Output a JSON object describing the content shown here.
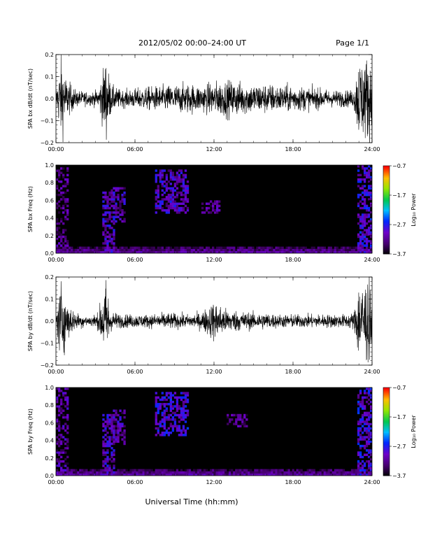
{
  "header": {
    "title": "2012/05/02  00:00–24:00 UT",
    "page": "Page 1/1"
  },
  "x_axis_title": "Universal Time (hh:mm)",
  "chart_data": [
    {
      "type": "line",
      "ylabel": "SPA bx dB/dt (nT/sec)",
      "ylim": [
        -0.2,
        0.2
      ],
      "yticks": [
        "0.2",
        "0.1",
        "0.0",
        "−0.1",
        "−0.2"
      ],
      "xlim": [
        0,
        24
      ],
      "xticks": [
        "00:00",
        "06:00",
        "12:00",
        "18:00",
        "24:00"
      ],
      "amplitude_profile": {
        "x_hours": [
          0,
          0.4,
          0.8,
          1.5,
          2.5,
          3.2,
          3.8,
          4.2,
          5.0,
          6.0,
          7.0,
          8.5,
          10.0,
          11.0,
          12.0,
          13.0,
          14.0,
          15.0,
          16.0,
          17.0,
          18.0,
          19.0,
          20.0,
          21.0,
          22.0,
          22.6,
          23.0,
          24.0
        ],
        "peak_amplitude": [
          0.05,
          0.25,
          0.12,
          0.05,
          0.04,
          0.05,
          0.25,
          0.08,
          0.05,
          0.06,
          0.07,
          0.08,
          0.09,
          0.08,
          0.1,
          0.11,
          0.1,
          0.09,
          0.09,
          0.08,
          0.08,
          0.07,
          0.06,
          0.05,
          0.05,
          0.05,
          0.25,
          0.25
        ]
      }
    },
    {
      "type": "heatmap",
      "ylabel": "SPA bx Freq (Hz)",
      "ylim": [
        0.0,
        1.0
      ],
      "yticks": [
        "1.0",
        "0.8",
        "0.6",
        "0.4",
        "0.2",
        "0.0"
      ],
      "xlim": [
        0,
        24
      ],
      "xticks": [
        "00:00",
        "06:00",
        "12:00",
        "18:00",
        "24:00"
      ],
      "colorbar": {
        "label": "Log₁₀ Power",
        "ticks": [
          "−0.7",
          "−1.7",
          "−2.7",
          "−3.7"
        ],
        "range": [
          -3.7,
          -0.7
        ]
      },
      "features": [
        {
          "x": [
            0.0,
            1.0
          ],
          "f": [
            0.0,
            1.0
          ],
          "level": -2.9
        },
        {
          "x": [
            3.5,
            4.5
          ],
          "f": [
            0.0,
            0.7
          ],
          "level": -2.6
        },
        {
          "x": [
            4.2,
            5.2
          ],
          "f": [
            0.35,
            0.75
          ],
          "level": -2.7
        },
        {
          "x": [
            7.5,
            10.0
          ],
          "f": [
            0.45,
            0.95
          ],
          "level": -2.6
        },
        {
          "x": [
            11.0,
            12.5
          ],
          "f": [
            0.45,
            0.6
          ],
          "level": -2.8
        },
        {
          "x": [
            22.9,
            24.0
          ],
          "f": [
            0.0,
            1.0
          ],
          "level": -2.5
        }
      ]
    },
    {
      "type": "line",
      "ylabel": "SPA by dB/dt (nT/sec)",
      "ylim": [
        -0.2,
        0.2
      ],
      "yticks": [
        "0.2",
        "0.1",
        "0.0",
        "−0.1",
        "−0.2"
      ],
      "xlim": [
        0,
        24
      ],
      "xticks": [
        "00:00",
        "06:00",
        "12:00",
        "18:00",
        "24:00"
      ],
      "amplitude_profile": {
        "x_hours": [
          0,
          0.4,
          0.8,
          1.5,
          2.5,
          3.2,
          3.8,
          4.2,
          5.0,
          6.0,
          7.0,
          8.5,
          10.0,
          11.0,
          12.0,
          13.0,
          14.0,
          15.0,
          16.0,
          17.0,
          18.0,
          19.0,
          20.0,
          21.0,
          22.0,
          22.6,
          23.0,
          24.0
        ],
        "peak_amplitude": [
          0.05,
          0.25,
          0.12,
          0.05,
          0.03,
          0.05,
          0.25,
          0.06,
          0.04,
          0.04,
          0.04,
          0.05,
          0.04,
          0.05,
          0.12,
          0.07,
          0.06,
          0.05,
          0.05,
          0.04,
          0.04,
          0.04,
          0.04,
          0.04,
          0.04,
          0.05,
          0.25,
          0.25
        ]
      }
    },
    {
      "type": "heatmap",
      "ylabel": "SPA by Freq (Hz)",
      "ylim": [
        0.0,
        1.0
      ],
      "yticks": [
        "1.0",
        "0.8",
        "0.6",
        "0.4",
        "0.2",
        "0.0"
      ],
      "xlim": [
        0,
        24
      ],
      "xticks": [
        "00:00",
        "06:00",
        "12:00",
        "18:00",
        "24:00"
      ],
      "colorbar": {
        "label": "Log₁₀ Power",
        "ticks": [
          "−0.7",
          "−1.7",
          "−2.7",
          "−3.7"
        ],
        "range": [
          -3.7,
          -0.7
        ]
      },
      "features": [
        {
          "x": [
            0.0,
            1.0
          ],
          "f": [
            0.0,
            1.0
          ],
          "level": -2.8
        },
        {
          "x": [
            3.5,
            4.5
          ],
          "f": [
            0.0,
            0.7
          ],
          "level": -2.6
        },
        {
          "x": [
            4.2,
            5.2
          ],
          "f": [
            0.35,
            0.75
          ],
          "level": -2.7
        },
        {
          "x": [
            7.5,
            10.0
          ],
          "f": [
            0.45,
            0.95
          ],
          "level": -2.5
        },
        {
          "x": [
            13.0,
            14.5
          ],
          "f": [
            0.55,
            0.7
          ],
          "level": -2.9
        },
        {
          "x": [
            22.9,
            24.0
          ],
          "f": [
            0.0,
            1.0
          ],
          "level": -2.5
        }
      ]
    }
  ]
}
